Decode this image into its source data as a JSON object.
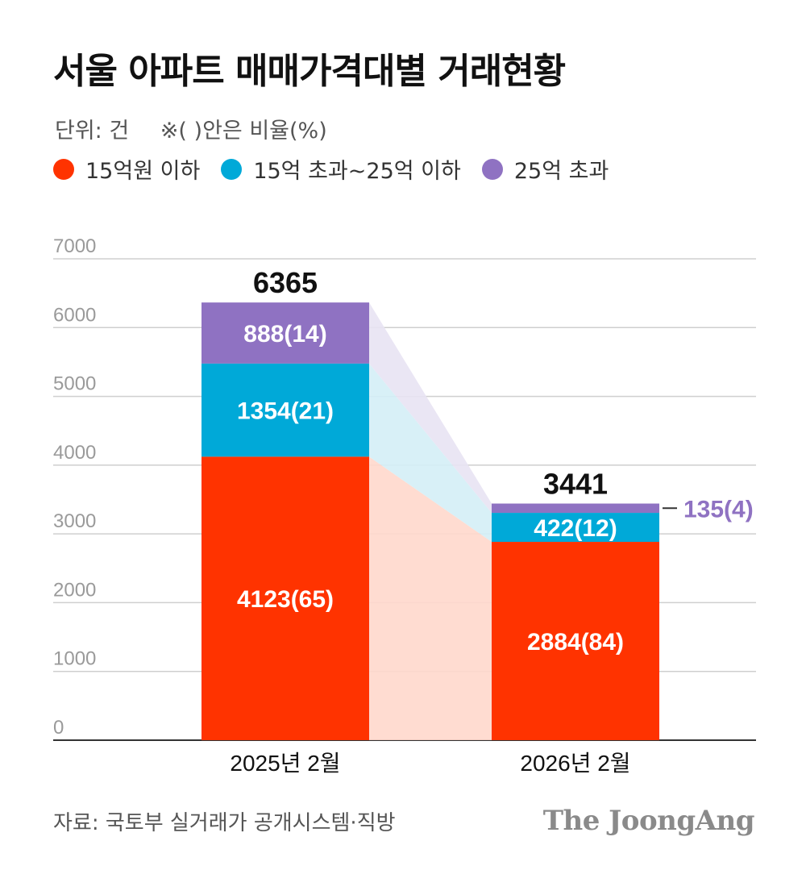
{
  "title": "서울 아파트 매매가격대별 거래현황",
  "unit_note": "단위: 건",
  "ratio_note": "※( )안은 비율(%)",
  "source": "자료: 국토부 실거래가 공개시스템·직방",
  "brand": "The JoongAng",
  "colors": {
    "s1": "#ff3300",
    "s2": "#00a9d8",
    "s3": "#8f72c2",
    "s1_band": "#ffd8cc",
    "s2_band": "#d4eef6",
    "s3_band": "#e8e3f3"
  },
  "chart_data": {
    "type": "bar",
    "stacked": true,
    "categories": [
      "2025년 2월",
      "2026년 2월"
    ],
    "series": [
      {
        "name": "15억원 이하",
        "values": [
          4123,
          2884
        ],
        "ratios": [
          65,
          84
        ],
        "labels": [
          "4123(65)",
          "2884(84)"
        ]
      },
      {
        "name": "15억 초과~25억 이하",
        "values": [
          1354,
          422
        ],
        "ratios": [
          21,
          12
        ],
        "labels": [
          "1354(21)",
          "422(12)"
        ]
      },
      {
        "name": "25억 초과",
        "values": [
          888,
          135
        ],
        "ratios": [
          14,
          4
        ],
        "labels": [
          "888(14)",
          "135(4)"
        ]
      }
    ],
    "totals": [
      6365,
      3441
    ],
    "total_labels": [
      "6365",
      "3441"
    ],
    "ylim": [
      0,
      7000
    ],
    "yticks": [
      0,
      1000,
      2000,
      3000,
      4000,
      5000,
      6000,
      7000
    ],
    "ytick_labels": [
      "0",
      "1000",
      "2000",
      "3000",
      "4000",
      "5000",
      "6000",
      "7000"
    ],
    "grid": true,
    "legend_position": "top-left"
  }
}
